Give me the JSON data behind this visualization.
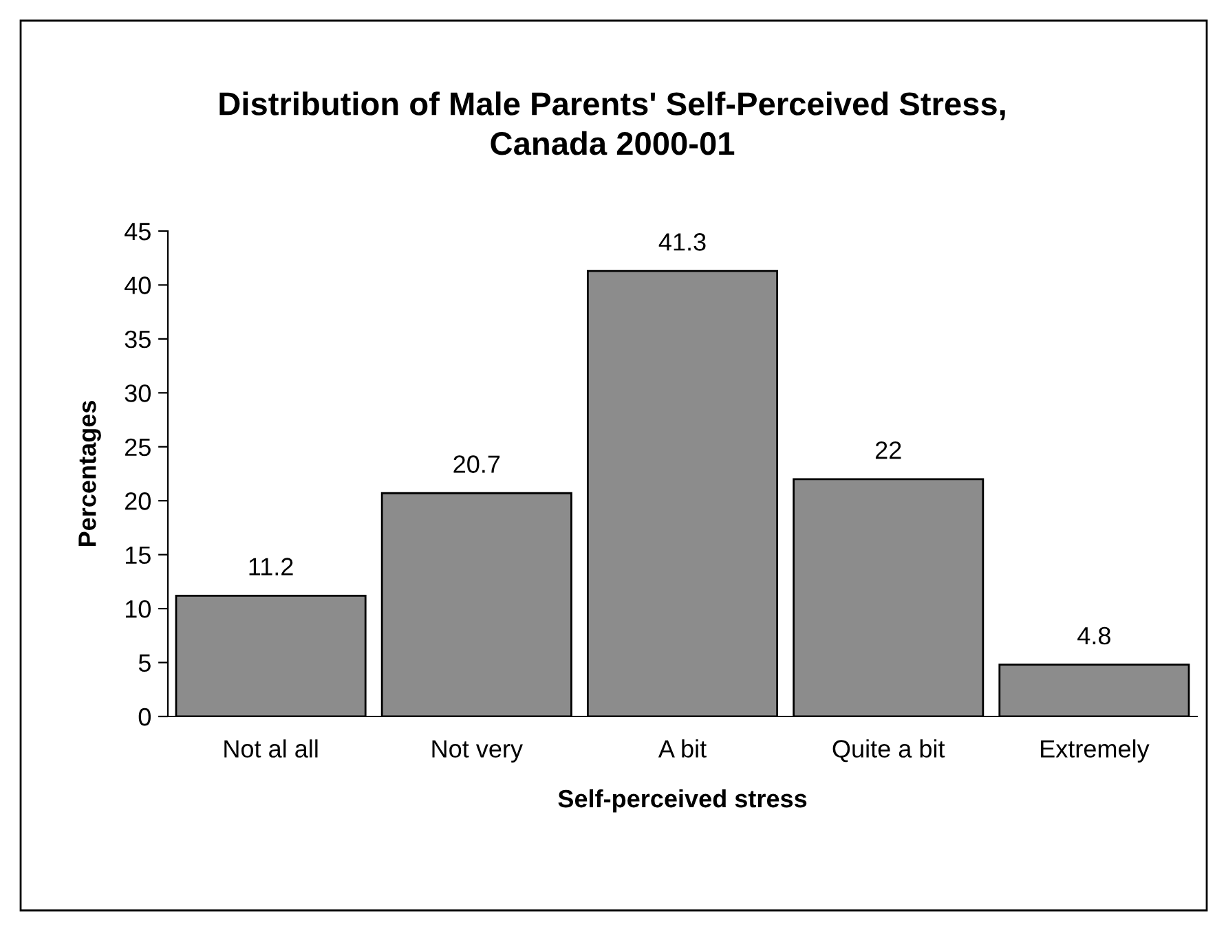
{
  "chart_data": {
    "type": "bar",
    "title": "Distribution of Male Parents' Self-Perceived Stress,\nCanada 2000-01",
    "xlabel": "Self-perceived stress",
    "ylabel": "Percentages",
    "categories": [
      "Not al all",
      "Not very",
      "A bit",
      "Quite a bit",
      "Extremely"
    ],
    "values": [
      11.2,
      20.7,
      41.3,
      22,
      4.8
    ],
    "color": "#8c8c8c",
    "ylim": [
      0,
      45
    ],
    "yticks": [
      0,
      5,
      10,
      15,
      20,
      25,
      30,
      35,
      40,
      45
    ],
    "data_labels": true,
    "grid": false,
    "legend": false
  }
}
